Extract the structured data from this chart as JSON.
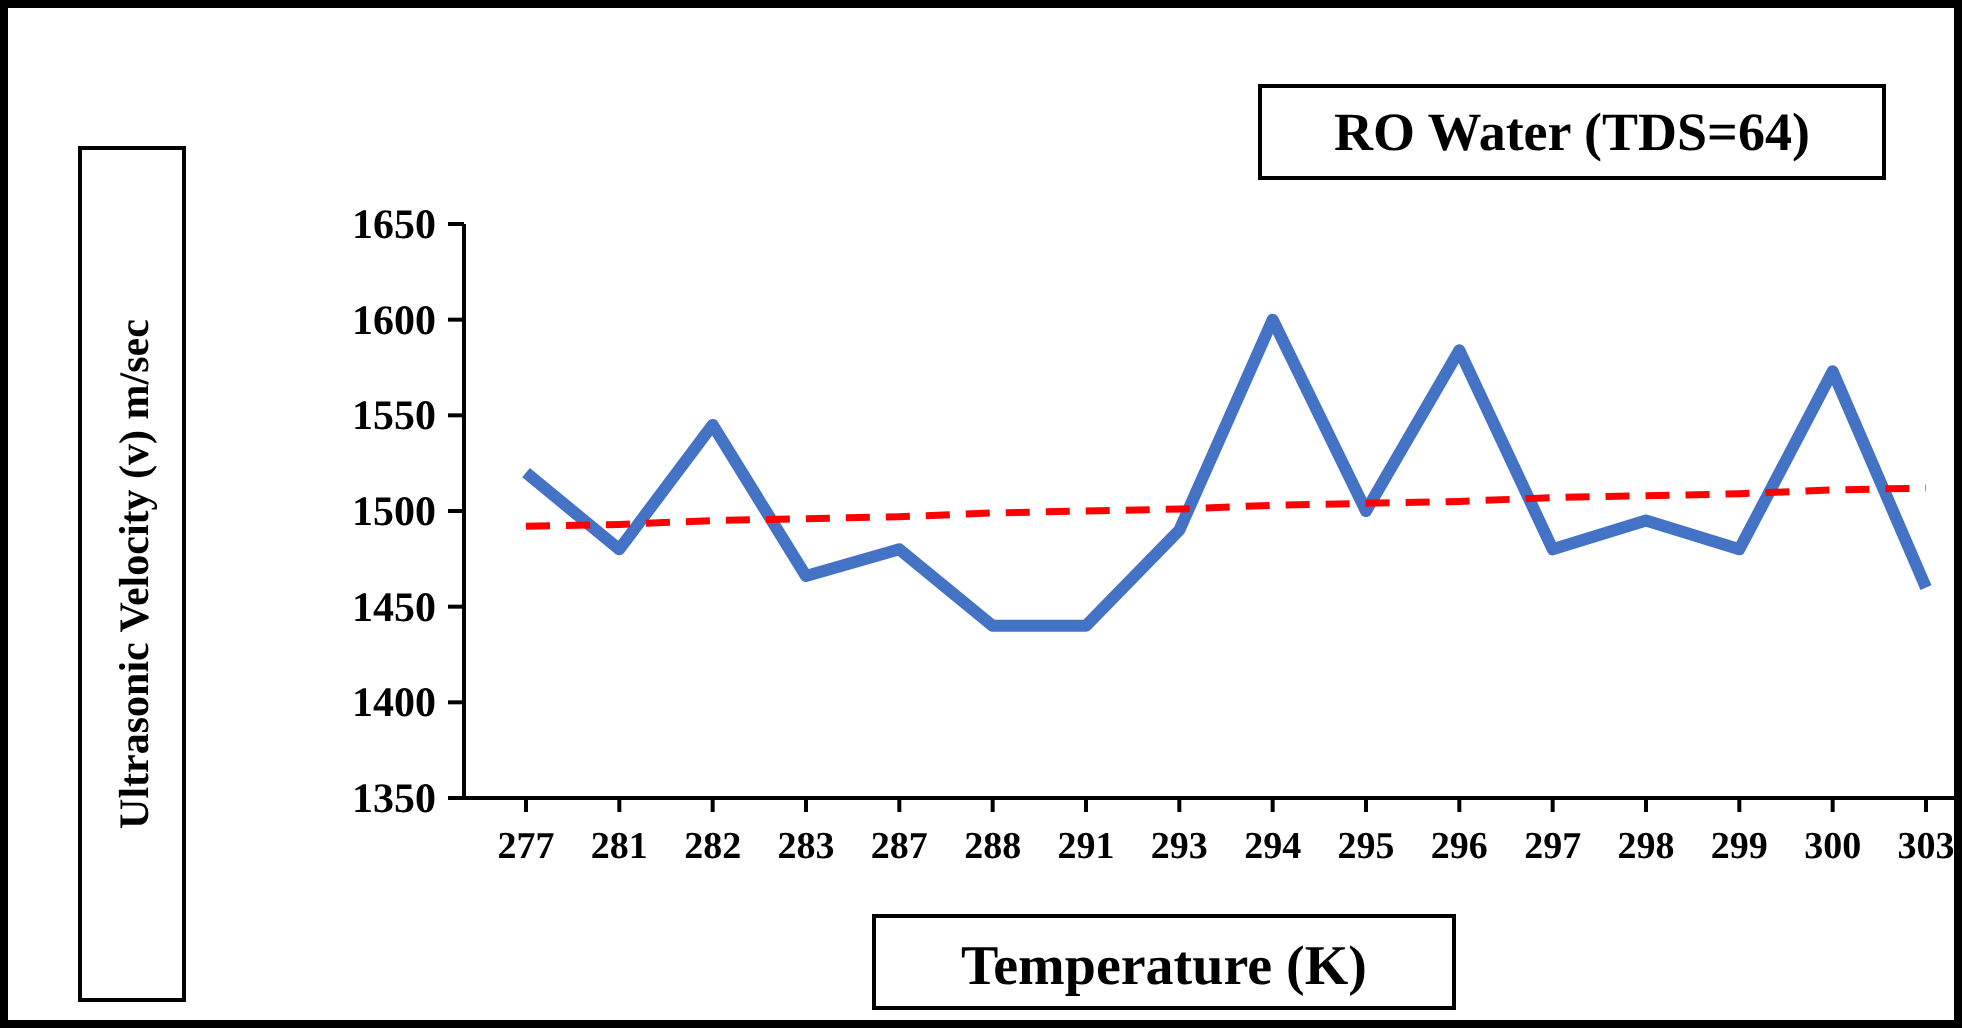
{
  "chart_data": {
    "type": "line",
    "title": "RO Water (TDS=64)",
    "xlabel": "Temperature (K)",
    "ylabel": "Ultrasonic Velocity (v) m/sec",
    "categories": [
      "277",
      "281",
      "282",
      "283",
      "287",
      "288",
      "291",
      "293",
      "294",
      "295",
      "296",
      "297",
      "298",
      "299",
      "300",
      "303"
    ],
    "series": [
      {
        "color": "#4472c4",
        "line_style": "solid",
        "values": [
          1520,
          1480,
          1545,
          1466,
          1480,
          1440,
          1440,
          1490,
          1600,
          1500,
          1584,
          1480,
          1495,
          1480,
          1573,
          1460
        ]
      },
      {
        "color": "#ff0000",
        "line_style": "dashed",
        "values": [
          1492,
          1493,
          1495,
          1496,
          1497,
          1499,
          1500,
          1501,
          1503,
          1504,
          1505,
          1507,
          1508,
          1509,
          1511,
          1512
        ]
      }
    ],
    "ylim": [
      1350,
      1650
    ],
    "yticks": [
      1350,
      1400,
      1450,
      1500,
      1550,
      1600,
      1650
    ],
    "grid": false,
    "marker": "none"
  }
}
